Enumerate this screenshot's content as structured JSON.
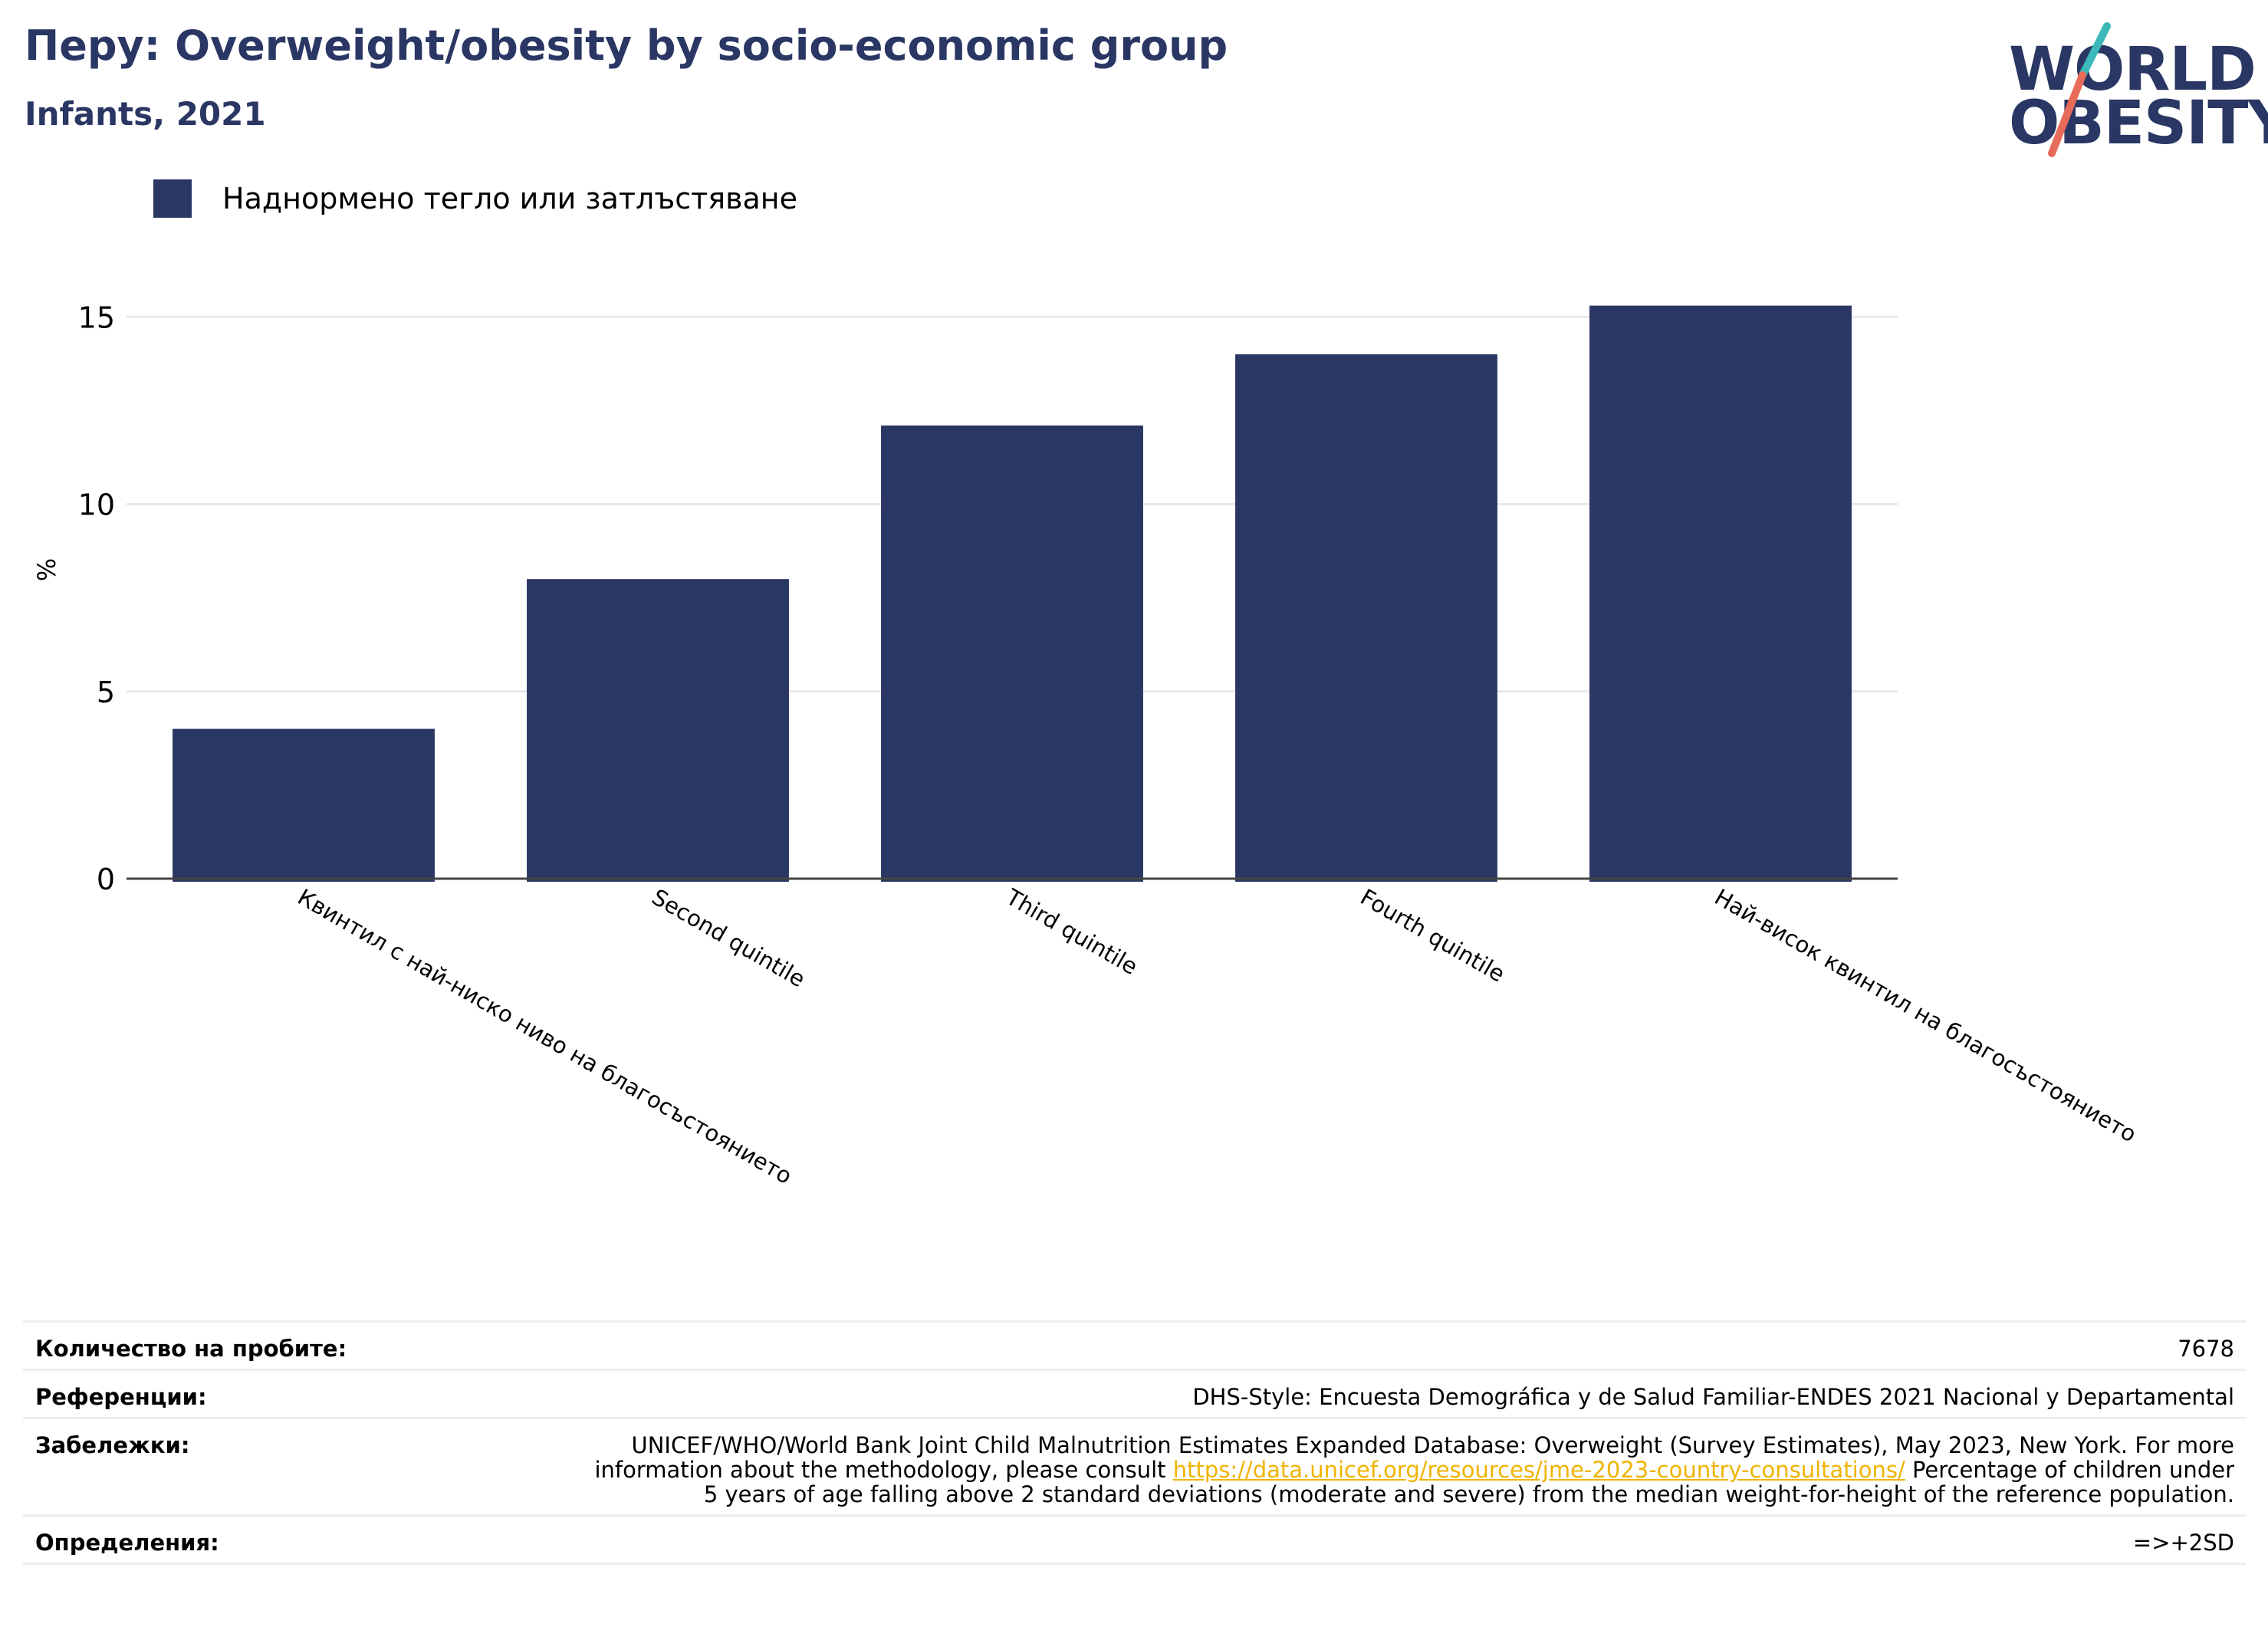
{
  "header": {
    "title": "Перу: Overweight/obesity by socio-economic group",
    "subtitle": "Infants, 2021"
  },
  "logo": {
    "line1": "WORLD",
    "line2": "OBESITY"
  },
  "colors": {
    "bar": "#2a3663",
    "title": "#2a3663",
    "grid": "#e8e8ee",
    "axis": "#444444",
    "link": "#f0b400",
    "logo_teal": "#3bb8b8",
    "logo_red": "#e86b5a"
  },
  "chart_data": {
    "type": "bar",
    "categories": [
      "Квинтил с най-ниско ниво на благосъстоянието",
      "Second quintile",
      "Third quintile",
      "Fourth quintile",
      "Най-висок квинтил на благосъстоянието"
    ],
    "series": [
      {
        "name": "Наднормено тегло или затлъстяване",
        "values": [
          4.0,
          8.0,
          12.1,
          14.0,
          15.3
        ]
      }
    ],
    "ylabel": "%",
    "yticks": [
      0,
      5,
      10,
      15
    ],
    "ylim": [
      0,
      16.5
    ],
    "grid": true,
    "legend_position": "top-left"
  },
  "footer": {
    "samples_label": "Количество на пробите:",
    "samples_value": "7678",
    "references_label": "Референции:",
    "references_value": "DHS-Style: Encuesta Demográfica y de Salud Familiar-ENDES 2021 Nacional y Departamental",
    "notes_label": "Забележки:",
    "notes_pre": "UNICEF/WHO/World Bank Joint Child Malnutrition Estimates Expanded Database: Overweight (Survey Estimates), May 2023, New York. For more information about the methodology, please consult ",
    "notes_link": "https://data.unicef.org/resources/jme-2023-country-consultations/",
    "notes_post": " Percentage of children under 5 years of age falling above 2 standard deviations (moderate and severe) from the median weight-for-height of the reference population.",
    "definitions_label": "Определения:",
    "definitions_value": "=>+2SD"
  }
}
